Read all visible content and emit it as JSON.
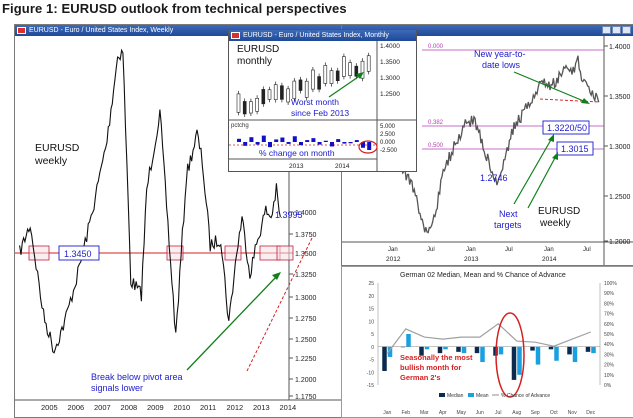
{
  "figure_title": "Figure 1: EURUSD outlook from technical perspectives",
  "colors": {
    "candles": "#111111",
    "pivot": "#d42020",
    "annotation": "#1c1ccc",
    "arrow": "#10801a",
    "bar_light": "#1aa0e0",
    "bar_dark": "#0c2a4e"
  },
  "weekly": {
    "window_title": "EURUSD - Euro / United States Index, Weekly",
    "label_line1": "EURUSD",
    "label_line2": "weekly",
    "peak_label": "1.3995",
    "pivot_label": "1.3450",
    "note_line1": "Break below pivot area",
    "note_line2": "signals lower",
    "y_ticks": [
      "1.4000",
      "1.3750",
      "1.3500",
      "1.3250",
      "1.3000",
      "1.2750",
      "1.2500",
      "1.2250",
      "1.2000",
      "1.1750"
    ],
    "x_ticks": [
      "2005",
      "2006",
      "2007",
      "2008",
      "2009",
      "2010",
      "2011",
      "2012",
      "2013",
      "2014"
    ]
  },
  "monthly": {
    "window_title": "EURUSD - Euro / United States Index, Monthly",
    "label_line1": "EURUSD",
    "label_line2": "monthly",
    "note_line1": "Worst month",
    "note_line2": "since Feb 2013",
    "y_ticks": [
      "1.4000",
      "1.3500",
      "1.3000",
      "1.2500"
    ],
    "sub_caption": "pctchg",
    "sub_ticks": [
      "5.000",
      "2.500",
      "0.000",
      "-2.500"
    ],
    "sub_label": "% change on month",
    "x_ticks": [
      "2013",
      "2014"
    ]
  },
  "daily": {
    "label_line1": "EURUSD",
    "label_line2": "weekly",
    "fib_labels": [
      "0.000",
      "0.382",
      "0.500"
    ],
    "note_line1": "New year-to-",
    "note_line2": "date lows",
    "target1": "1.3220/50",
    "target2": "1.3015",
    "low_label": "1.2746",
    "next_line1": "Next",
    "next_line2": "targets",
    "y_ticks": [
      "1.4000",
      "1.3500",
      "1.3000",
      "1.2500",
      "1.2000"
    ],
    "x_ticks": [
      "2012",
      "2013",
      "2014"
    ],
    "x_months": [
      "Jan",
      "Jul",
      "Jan",
      "Jul",
      "Jan",
      "Jul"
    ]
  },
  "seasonal": {
    "title": "German 02 Median, Mean and % Chance of Advance",
    "note_line1": "Seasonally the most",
    "note_line2": "bullish month for",
    "note_line3": "German 2's",
    "legend": [
      "Median",
      "Mean",
      "% Chance of Advance"
    ],
    "y_left": [
      "25",
      "20",
      "15",
      "10",
      "5",
      "0",
      "-5",
      "-10",
      "-15"
    ],
    "y_right": [
      "100%",
      "90%",
      "80%",
      "70%",
      "60%",
      "50%",
      "40%",
      "30%",
      "20%",
      "10%",
      "0%"
    ]
  },
  "chart_data": [
    {
      "type": "bar",
      "title": "German 02 Median, Mean and % Chance of Advance",
      "categories": [
        "Jan",
        "Feb",
        "Mar",
        "Apr",
        "May",
        "Jun",
        "Jul",
        "Aug",
        "Sep",
        "Oct",
        "Nov",
        "Dec"
      ],
      "series": [
        {
          "name": "Median",
          "values": [
            -9.5,
            0,
            -3.5,
            -2.5,
            -2,
            -2.5,
            -3.5,
            -13,
            -1.5,
            -1,
            -3,
            -2
          ]
        },
        {
          "name": "Mean",
          "values": [
            -4,
            5,
            -1,
            -1,
            -2.5,
            -6,
            -3,
            -11,
            -7,
            -5.5,
            -6,
            -2.5
          ]
        },
        {
          "name": "% Chance of Advance",
          "values": [
            31,
            55,
            47,
            45,
            47,
            47,
            60,
            43,
            42,
            38,
            45,
            52
          ]
        }
      ],
      "ylim": [
        -15,
        25
      ],
      "ylim_right": [
        0,
        100
      ]
    },
    {
      "type": "bar",
      "title": "% change on month",
      "values": [
        1.0,
        -1.2,
        1.5,
        -0.8,
        2.0,
        -1.6,
        0.8,
        1.4,
        -0.6,
        1.8,
        -1.0,
        0.6,
        1.2,
        -0.8,
        0.4,
        -1.4,
        0.9,
        -0.5,
        -0.4,
        0.6,
        -1.8,
        -2.5
      ],
      "ylim": [
        -3.5,
        5
      ]
    },
    {
      "type": "line",
      "title": "EURUSD weekly",
      "x": [
        2004.6,
        2005.0,
        2005.5,
        2005.9,
        2006.3,
        2006.8,
        2007.3,
        2007.9,
        2008.3,
        2008.5,
        2008.8,
        2009.2,
        2009.4,
        2009.9,
        2010.2,
        2010.5,
        2010.9,
        2011.3,
        2011.5,
        2011.8,
        2012.2,
        2012.5,
        2012.8,
        2013.0,
        2013.3,
        2013.6,
        2013.9,
        2014.1,
        2014.3,
        2014.5
      ],
      "y": [
        1.31,
        1.35,
        1.22,
        1.17,
        1.21,
        1.28,
        1.36,
        1.47,
        1.59,
        1.6,
        1.27,
        1.25,
        1.4,
        1.51,
        1.35,
        1.19,
        1.42,
        1.48,
        1.44,
        1.32,
        1.33,
        1.21,
        1.31,
        1.36,
        1.28,
        1.33,
        1.37,
        1.36,
        1.3995,
        1.34
      ],
      "annotations": [
        {
          "label": "1.3995"
        },
        {
          "label": "1.3450"
        }
      ]
    }
  ]
}
